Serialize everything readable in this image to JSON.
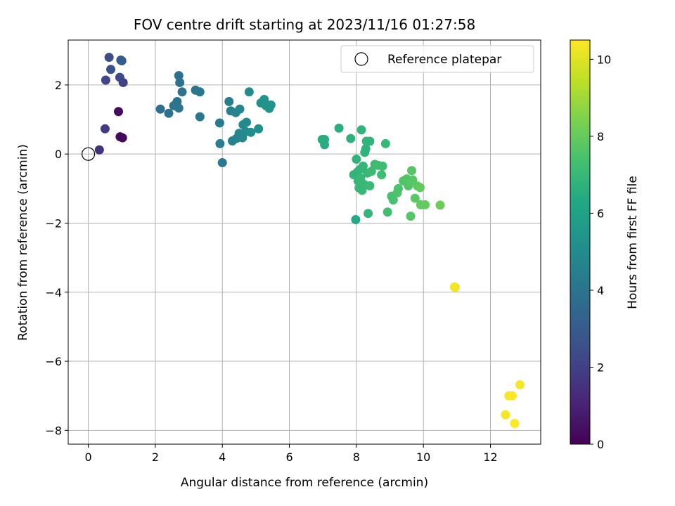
{
  "chart_data": {
    "type": "scatter",
    "title": "FOV centre drift starting at 2023/11/16 01:27:58",
    "xlabel": "Angular distance from reference (arcmin)",
    "ylabel": "Rotation from reference (arcmin)",
    "xlim": [
      -0.6,
      13.5
    ],
    "ylim": [
      -8.4,
      3.3
    ],
    "xticks": [
      0,
      2,
      4,
      6,
      8,
      10,
      12
    ],
    "yticks": [
      -8,
      -6,
      -4,
      -2,
      0,
      2
    ],
    "grid": true,
    "legend": {
      "placement": "top-right",
      "entries": [
        "Reference platepar"
      ]
    },
    "reference_point": {
      "x": 0,
      "y": 0
    },
    "colorbar": {
      "label": "Hours from first FF file",
      "range": [
        0,
        10.5
      ],
      "ticks": [
        0,
        2,
        4,
        6,
        8,
        10
      ],
      "colormap": "viridis"
    },
    "points": [
      {
        "x": 0.33,
        "y": 0.12,
        "t": 1.5
      },
      {
        "x": 0.5,
        "y": 0.73,
        "t": 1.8
      },
      {
        "x": 0.52,
        "y": 2.14,
        "t": 2.2
      },
      {
        "x": 0.62,
        "y": 2.8,
        "t": 2.5
      },
      {
        "x": 0.67,
        "y": 2.45,
        "t": 2.6
      },
      {
        "x": 0.94,
        "y": 2.22,
        "t": 2.4
      },
      {
        "x": 0.97,
        "y": 2.72,
        "t": 2.8
      },
      {
        "x": 1.0,
        "y": 2.7,
        "t": 3.0
      },
      {
        "x": 1.04,
        "y": 2.07,
        "t": 2.0
      },
      {
        "x": 0.9,
        "y": 1.23,
        "t": 0.3
      },
      {
        "x": 0.95,
        "y": 0.5,
        "t": 0.4
      },
      {
        "x": 1.02,
        "y": 0.47,
        "t": 0.2
      },
      {
        "x": 2.15,
        "y": 1.3,
        "t": 3.8
      },
      {
        "x": 2.4,
        "y": 1.18,
        "t": 3.9
      },
      {
        "x": 2.55,
        "y": 1.4,
        "t": 4.0
      },
      {
        "x": 2.65,
        "y": 1.52,
        "t": 4.0
      },
      {
        "x": 2.7,
        "y": 1.33,
        "t": 4.1
      },
      {
        "x": 2.7,
        "y": 2.27,
        "t": 3.8
      },
      {
        "x": 2.73,
        "y": 2.07,
        "t": 3.9
      },
      {
        "x": 2.8,
        "y": 1.8,
        "t": 4.0
      },
      {
        "x": 3.2,
        "y": 1.85,
        "t": 4.0
      },
      {
        "x": 3.33,
        "y": 1.8,
        "t": 4.1
      },
      {
        "x": 3.33,
        "y": 1.08,
        "t": 4.2
      },
      {
        "x": 3.92,
        "y": 0.9,
        "t": 4.3
      },
      {
        "x": 3.93,
        "y": 0.3,
        "t": 4.4
      },
      {
        "x": 4.0,
        "y": -0.25,
        "t": 4.3
      },
      {
        "x": 4.2,
        "y": 1.52,
        "t": 4.5
      },
      {
        "x": 4.25,
        "y": 1.25,
        "t": 4.6
      },
      {
        "x": 4.3,
        "y": 0.38,
        "t": 4.6
      },
      {
        "x": 4.4,
        "y": 1.2,
        "t": 4.7
      },
      {
        "x": 4.42,
        "y": 0.45,
        "t": 4.7
      },
      {
        "x": 4.5,
        "y": 0.6,
        "t": 4.8
      },
      {
        "x": 4.52,
        "y": 1.3,
        "t": 4.8
      },
      {
        "x": 4.6,
        "y": 0.47,
        "t": 4.9
      },
      {
        "x": 4.62,
        "y": 0.85,
        "t": 4.9
      },
      {
        "x": 4.7,
        "y": 0.65,
        "t": 5.0
      },
      {
        "x": 4.72,
        "y": 0.92,
        "t": 5.0
      },
      {
        "x": 4.8,
        "y": 1.8,
        "t": 5.0
      },
      {
        "x": 4.85,
        "y": 0.63,
        "t": 5.1
      },
      {
        "x": 5.08,
        "y": 0.73,
        "t": 5.2
      },
      {
        "x": 5.15,
        "y": 1.48,
        "t": 5.2
      },
      {
        "x": 5.25,
        "y": 1.58,
        "t": 5.3
      },
      {
        "x": 5.3,
        "y": 1.4,
        "t": 5.3
      },
      {
        "x": 5.4,
        "y": 1.32,
        "t": 5.4
      },
      {
        "x": 5.45,
        "y": 1.42,
        "t": 5.4
      },
      {
        "x": 6.98,
        "y": 0.42,
        "t": 6.4
      },
      {
        "x": 7.05,
        "y": 0.42,
        "t": 6.5
      },
      {
        "x": 7.05,
        "y": 0.27,
        "t": 6.5
      },
      {
        "x": 7.48,
        "y": 0.75,
        "t": 6.6
      },
      {
        "x": 7.83,
        "y": 0.45,
        "t": 6.7
      },
      {
        "x": 7.92,
        "y": -0.6,
        "t": 6.9
      },
      {
        "x": 7.98,
        "y": -1.9,
        "t": 6.3
      },
      {
        "x": 8.0,
        "y": -0.15,
        "t": 6.8
      },
      {
        "x": 8.03,
        "y": -0.52,
        "t": 6.8
      },
      {
        "x": 8.05,
        "y": -0.78,
        "t": 6.9
      },
      {
        "x": 8.08,
        "y": -0.98,
        "t": 7.0
      },
      {
        "x": 8.1,
        "y": -0.45,
        "t": 6.9
      },
      {
        "x": 8.13,
        "y": -0.7,
        "t": 7.0
      },
      {
        "x": 8.15,
        "y": 0.7,
        "t": 6.8
      },
      {
        "x": 8.17,
        "y": -1.05,
        "t": 7.0
      },
      {
        "x": 8.2,
        "y": -0.35,
        "t": 6.9
      },
      {
        "x": 8.23,
        "y": -0.88,
        "t": 7.0
      },
      {
        "x": 8.25,
        "y": 0.05,
        "t": 6.8
      },
      {
        "x": 8.28,
        "y": 0.15,
        "t": 6.8
      },
      {
        "x": 8.3,
        "y": 0.37,
        "t": 6.8
      },
      {
        "x": 8.33,
        "y": -0.55,
        "t": 7.0
      },
      {
        "x": 8.35,
        "y": -1.72,
        "t": 6.9
      },
      {
        "x": 8.4,
        "y": 0.37,
        "t": 6.8
      },
      {
        "x": 8.4,
        "y": -0.92,
        "t": 7.1
      },
      {
        "x": 8.45,
        "y": -0.5,
        "t": 7.1
      },
      {
        "x": 8.55,
        "y": -0.3,
        "t": 7.1
      },
      {
        "x": 8.65,
        "y": -0.33,
        "t": 7.2
      },
      {
        "x": 8.75,
        "y": -0.6,
        "t": 7.2
      },
      {
        "x": 8.78,
        "y": -0.35,
        "t": 7.2
      },
      {
        "x": 8.87,
        "y": 0.3,
        "t": 7.0
      },
      {
        "x": 8.93,
        "y": -1.68,
        "t": 7.3
      },
      {
        "x": 9.05,
        "y": -1.22,
        "t": 7.4
      },
      {
        "x": 9.1,
        "y": -1.33,
        "t": 7.4
      },
      {
        "x": 9.22,
        "y": -1.12,
        "t": 7.5
      },
      {
        "x": 9.25,
        "y": -1.0,
        "t": 7.5
      },
      {
        "x": 9.4,
        "y": -0.78,
        "t": 7.6
      },
      {
        "x": 9.5,
        "y": -0.72,
        "t": 7.6
      },
      {
        "x": 9.55,
        "y": -0.92,
        "t": 7.6
      },
      {
        "x": 9.6,
        "y": -0.82,
        "t": 7.7
      },
      {
        "x": 9.62,
        "y": -1.8,
        "t": 7.7
      },
      {
        "x": 9.65,
        "y": -0.48,
        "t": 7.7
      },
      {
        "x": 9.68,
        "y": -0.75,
        "t": 7.7
      },
      {
        "x": 9.75,
        "y": -1.28,
        "t": 7.8
      },
      {
        "x": 9.83,
        "y": -0.93,
        "t": 7.8
      },
      {
        "x": 9.9,
        "y": -0.97,
        "t": 7.9
      },
      {
        "x": 9.92,
        "y": -1.47,
        "t": 7.9
      },
      {
        "x": 10.05,
        "y": -1.47,
        "t": 8.0
      },
      {
        "x": 10.5,
        "y": -1.48,
        "t": 8.1
      },
      {
        "x": 10.93,
        "y": -3.85,
        "t": 10.2
      },
      {
        "x": 10.95,
        "y": -3.86,
        "t": 10.3
      },
      {
        "x": 12.45,
        "y": -7.55,
        "t": 10.4
      },
      {
        "x": 12.55,
        "y": -7.0,
        "t": 10.4
      },
      {
        "x": 12.65,
        "y": -7.0,
        "t": 10.5
      },
      {
        "x": 12.72,
        "y": -7.8,
        "t": 10.5
      },
      {
        "x": 12.88,
        "y": -6.68,
        "t": 10.4
      }
    ]
  }
}
